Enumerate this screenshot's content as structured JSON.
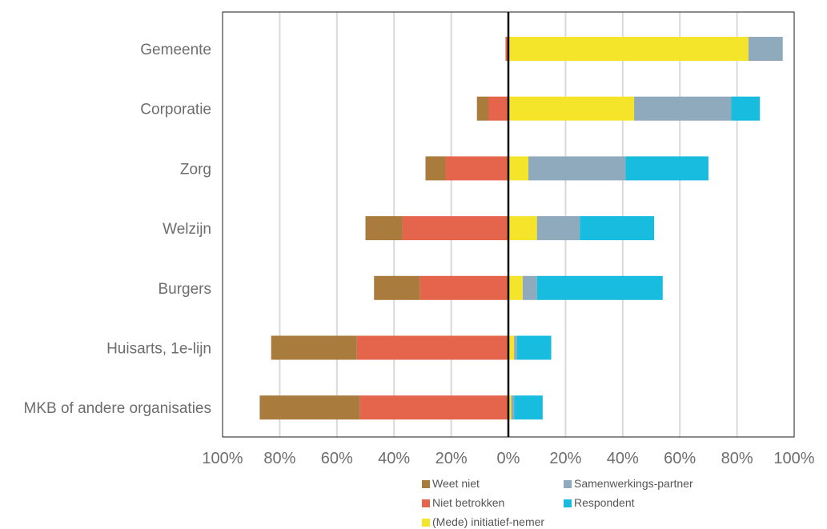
{
  "chart_data": {
    "type": "bar",
    "orientation": "horizontal",
    "stacking": "diverging",
    "title": "",
    "xlabel": "",
    "ylabel": "",
    "categories": [
      "Gemeente",
      "Corporatie",
      "Zorg",
      "Welzijn",
      "Burgers",
      "Huisarts, 1e-lijn",
      "MKB of andere organisaties"
    ],
    "xlim": [
      -100,
      100
    ],
    "tick_labels": [
      "100%",
      "80%",
      "60%",
      "40%",
      "20%",
      "0%",
      "20%",
      "40%",
      "60%",
      "80%",
      "100%"
    ],
    "negative_series": [
      {
        "name": "Niet betrokken",
        "color": "#e5644c",
        "values": [
          -1,
          -7,
          -22,
          -37,
          -31,
          -53,
          -52
        ]
      },
      {
        "name": "Weet niet",
        "color": "#a97b3c",
        "values": [
          0,
          -4,
          -7,
          -13,
          -16,
          -30,
          -35
        ]
      }
    ],
    "positive_series": [
      {
        "name": "(Mede) initiatief-nemer",
        "color": "#f4e52a",
        "values": [
          84,
          44,
          7,
          10,
          5,
          2,
          1
        ]
      },
      {
        "name": "Samenwerkings-partner",
        "color": "#8fa9bd",
        "values": [
          12,
          34,
          34,
          15,
          5,
          1,
          1
        ]
      },
      {
        "name": "Respondent",
        "color": "#17bcdf",
        "values": [
          0,
          10,
          29,
          26,
          44,
          12,
          10
        ]
      }
    ],
    "gridlines": true,
    "legend_position": "bottom-right",
    "legend": {
      "items": [
        {
          "name": "Weet niet",
          "color": "#a97b3c"
        },
        {
          "name": "Samenwerkings-partner",
          "color": "#8fa9bd"
        },
        {
          "name": "Niet betrokken",
          "color": "#e5644c"
        },
        {
          "name": "Respondent",
          "color": "#17bcdf"
        },
        {
          "name": "(Mede) initiatief-nemer",
          "color": "#f4e52a"
        }
      ]
    }
  },
  "colors": {
    "grid": "#d9d9d9",
    "axis": "#000000",
    "frame": "#1a1a1a",
    "text": "#6d6d6d"
  }
}
